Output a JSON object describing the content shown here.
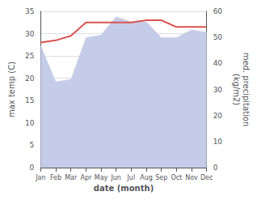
{
  "chart_data": {
    "type": "line",
    "xlabel": "date (month)",
    "ylabel": "max temp (C)",
    "y2label": "med. precipitation\n(kg/m2)",
    "categories": [
      "Jan",
      "Feb",
      "Mar",
      "Apr",
      "May",
      "Jun",
      "Jul",
      "Aug",
      "Sep",
      "Oct",
      "Nov",
      "Dec"
    ],
    "series": [
      {
        "type": "area",
        "axis": "y2",
        "color": "#c5cce8",
        "values": [
          47.0,
          33.0,
          34.0,
          50.0,
          51.0,
          58.0,
          56.0,
          56.0,
          50.0,
          50.0,
          53.0,
          52.0
        ]
      },
      {
        "type": "line",
        "color": "#d9534f",
        "values": [
          28.0,
          28.5,
          29.5,
          32.5,
          32.5,
          32.5,
          32.5,
          33.0,
          33.0,
          31.5,
          31.5,
          31.5
        ]
      }
    ],
    "ylim": [
      0,
      35
    ],
    "yticks": [
      0,
      5,
      10,
      15,
      20,
      25,
      30,
      35
    ],
    "y2lim": [
      0,
      60
    ],
    "y2ticks": [
      0,
      10,
      20,
      30,
      40,
      50,
      60
    ],
    "grid": true
  }
}
